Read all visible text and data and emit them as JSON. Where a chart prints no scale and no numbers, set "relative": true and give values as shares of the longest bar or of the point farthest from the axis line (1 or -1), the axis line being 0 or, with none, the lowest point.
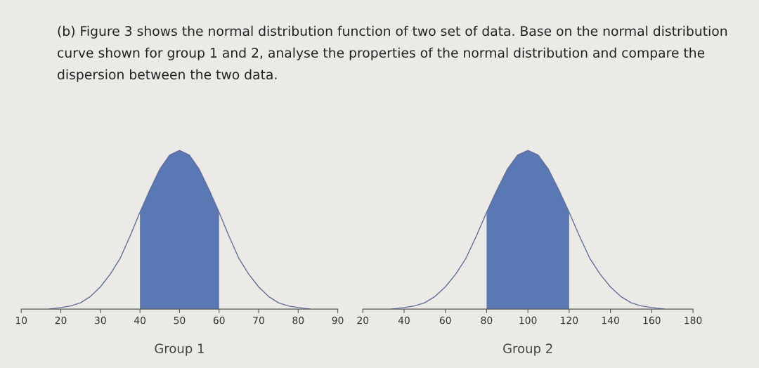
{
  "chart_data": [
    {
      "type": "line",
      "relative": true,
      "title": "(b) Figure 3 shows the normal distribution function of two set of data. Base on the normal distribution curve shown for group 1 and 2, analyse the properties of the normal distribution and compare the dispersion between the two data.",
      "xlabel": "Group 1",
      "xlim": [
        10,
        90
      ],
      "xticks": [
        10,
        20,
        30,
        40,
        50,
        60,
        70,
        80,
        90
      ],
      "series": [
        {
          "type": "area",
          "color": "#5a78b4",
          "x": [
            40,
            42.5,
            45,
            47.5,
            50,
            52.5,
            55,
            57.5,
            60
          ],
          "values": [
            0.61,
            0.75,
            0.88,
            0.97,
            1,
            0.97,
            0.88,
            0.75,
            0.61
          ]
        },
        {
          "color": "#5f6f9a",
          "x": [
            17,
            20,
            22.5,
            25,
            27.5,
            30,
            32.5,
            35,
            37.5,
            40,
            42.5,
            45,
            47.5,
            50,
            52.5,
            55,
            57.5,
            60,
            62.5,
            65,
            67.5,
            70,
            72.5,
            75,
            77.5,
            80,
            83
          ],
          "values": [
            0,
            0.01,
            0.02,
            0.04,
            0.08,
            0.14,
            0.22,
            0.32,
            0.46,
            0.61,
            0.75,
            0.88,
            0.97,
            1,
            0.97,
            0.88,
            0.75,
            0.61,
            0.46,
            0.32,
            0.22,
            0.14,
            0.08,
            0.04,
            0.02,
            0.01,
            0
          ]
        }
      ]
    },
    {
      "type": "line",
      "relative": true,
      "xlabel": "Group 2",
      "xlim": [
        20,
        180
      ],
      "xticks": [
        20,
        40,
        60,
        80,
        100,
        120,
        140,
        160,
        180
      ],
      "series": [
        {
          "type": "area",
          "color": "#5a78b4",
          "x": [
            80,
            85,
            90,
            95,
            100,
            105,
            110,
            115,
            120
          ],
          "values": [
            0.61,
            0.75,
            0.88,
            0.97,
            1,
            0.97,
            0.88,
            0.75,
            0.61
          ]
        },
        {
          "color": "#5f6f9a",
          "x": [
            34,
            40,
            45,
            50,
            55,
            60,
            65,
            70,
            75,
            80,
            85,
            90,
            95,
            100,
            105,
            110,
            115,
            120,
            125,
            130,
            135,
            140,
            145,
            150,
            155,
            160,
            166
          ],
          "values": [
            0,
            0.01,
            0.02,
            0.04,
            0.08,
            0.14,
            0.22,
            0.32,
            0.46,
            0.61,
            0.75,
            0.88,
            0.97,
            1,
            0.97,
            0.88,
            0.75,
            0.61,
            0.46,
            0.32,
            0.22,
            0.14,
            0.08,
            0.04,
            0.02,
            0.01,
            0
          ]
        }
      ]
    }
  ]
}
